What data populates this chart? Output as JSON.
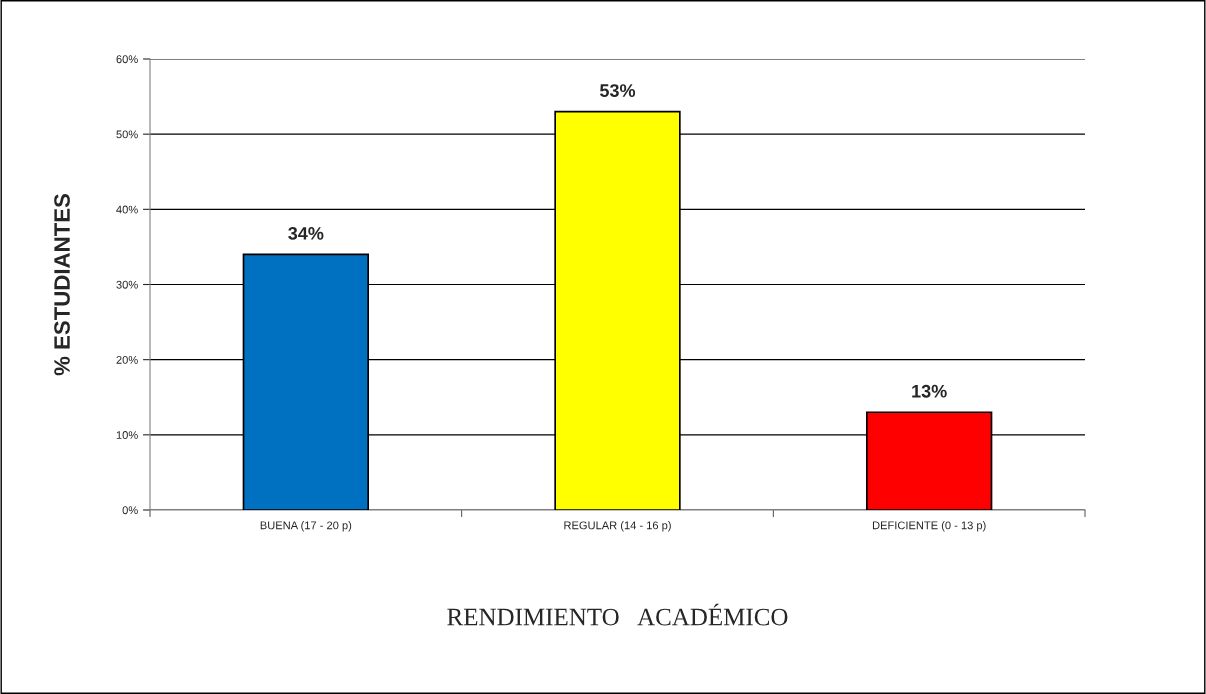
{
  "chart_data": {
    "type": "bar",
    "categories": [
      "BUENA (17 - 20 p)",
      "REGULAR (14 - 16 p)",
      "DEFICIENTE (0 - 13 p)"
    ],
    "values": [
      34,
      53,
      13
    ],
    "colors": [
      "#0070c0",
      "#ffff00",
      "#ff0000"
    ],
    "value_labels": [
      "34%",
      "53%",
      "13%"
    ],
    "xlabel": "RENDIMIENTO   ACADÉMICO",
    "ylabel": "% ESTUDIANTES",
    "ylim": [
      0,
      60
    ],
    "yticks": [
      {
        "value": 0,
        "label": "0%"
      },
      {
        "value": 10,
        "label": "10%"
      },
      {
        "value": 20,
        "label": "20%"
      },
      {
        "value": 30,
        "label": "30%"
      },
      {
        "value": 40,
        "label": "40%"
      },
      {
        "value": 50,
        "label": "50%"
      },
      {
        "value": 60,
        "label": "60%"
      }
    ],
    "grid": "y",
    "legend": false
  }
}
